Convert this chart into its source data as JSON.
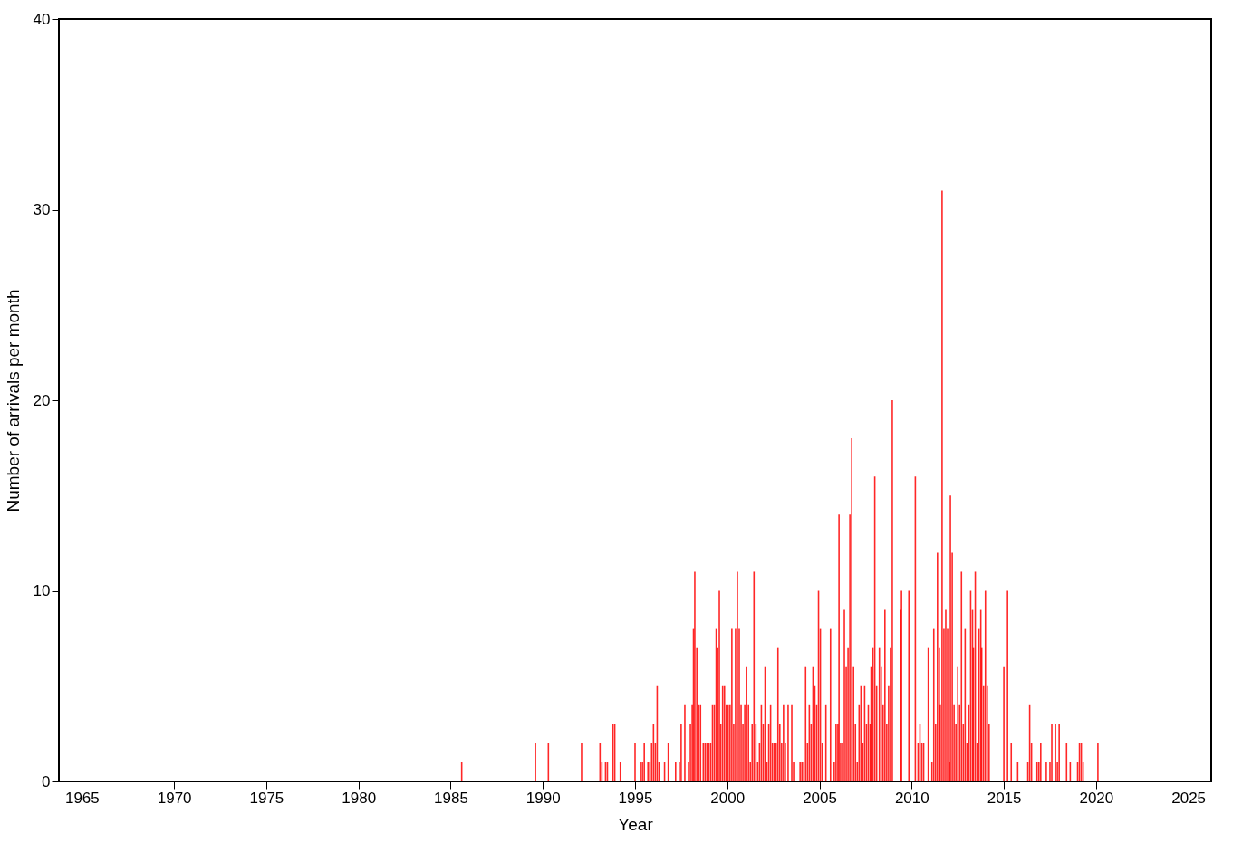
{
  "chart_data": {
    "type": "bar",
    "xlabel": "Year",
    "ylabel": "Number of arrivals per month",
    "x": [
      1985.6,
      1989.6,
      1990.3,
      1992.1,
      1993.1,
      1993.2,
      1993.4,
      1993.5,
      1993.8,
      1993.9,
      1994.2,
      1995.0,
      1995.3,
      1995.4,
      1995.5,
      1995.7,
      1995.8,
      1995.9,
      1996.0,
      1996.1,
      1996.2,
      1996.3,
      1996.6,
      1996.8,
      1997.2,
      1997.4,
      1997.5,
      1997.7,
      1997.9,
      1998.0,
      1998.1,
      1998.17,
      1998.24,
      1998.35,
      1998.45,
      1998.55,
      1998.7,
      1998.8,
      1998.9,
      1999.0,
      1999.1,
      1999.2,
      1999.3,
      1999.4,
      1999.48,
      1999.57,
      1999.65,
      1999.75,
      1999.85,
      1999.95,
      2000.05,
      2000.15,
      2000.25,
      2000.35,
      2000.45,
      2000.55,
      2000.65,
      2000.75,
      2000.85,
      2000.95,
      2001.05,
      2001.15,
      2001.25,
      2001.35,
      2001.45,
      2001.55,
      2001.65,
      2001.75,
      2001.85,
      2001.95,
      2002.05,
      2002.15,
      2002.25,
      2002.35,
      2002.45,
      2002.55,
      2002.65,
      2002.75,
      2002.85,
      2002.95,
      2003.05,
      2003.15,
      2003.3,
      2003.5,
      2003.6,
      2003.95,
      2004.05,
      2004.15,
      2004.25,
      2004.35,
      2004.45,
      2004.55,
      2004.65,
      2004.75,
      2004.85,
      2004.95,
      2005.05,
      2005.15,
      2005.35,
      2005.6,
      2005.8,
      2005.9,
      2006.0,
      2006.06,
      2006.15,
      2006.25,
      2006.35,
      2006.45,
      2006.55,
      2006.65,
      2006.75,
      2006.85,
      2006.95,
      2007.05,
      2007.15,
      2007.25,
      2007.35,
      2007.45,
      2007.55,
      2007.65,
      2007.75,
      2007.8,
      2007.9,
      2008.0,
      2008.1,
      2008.25,
      2008.35,
      2008.45,
      2008.55,
      2008.65,
      2008.75,
      2008.85,
      2008.95,
      2009.4,
      2009.45,
      2009.85,
      2010.2,
      2010.35,
      2010.45,
      2010.55,
      2010.65,
      2010.9,
      2011.1,
      2011.2,
      2011.3,
      2011.4,
      2011.5,
      2011.55,
      2011.65,
      2011.75,
      2011.85,
      2011.95,
      2012.05,
      2012.1,
      2012.2,
      2012.3,
      2012.4,
      2012.5,
      2012.6,
      2012.7,
      2012.8,
      2012.9,
      2013.0,
      2013.1,
      2013.2,
      2013.3,
      2013.35,
      2013.45,
      2013.55,
      2013.65,
      2013.75,
      2013.8,
      2013.9,
      2014.0,
      2014.1,
      2014.2,
      2015.0,
      2015.2,
      2015.4,
      2015.75,
      2016.3,
      2016.4,
      2016.5,
      2016.8,
      2016.9,
      2017.0,
      2017.3,
      2017.5,
      2017.6,
      2017.8,
      2017.9,
      2018.0,
      2018.4,
      2018.6,
      2019.0,
      2019.1,
      2019.2,
      2019.3,
      2020.1
    ],
    "values": [
      1,
      2,
      2,
      2,
      2,
      1,
      1,
      1,
      3,
      3,
      1,
      2,
      1,
      1,
      2,
      1,
      1,
      2,
      3,
      2,
      5,
      1,
      1,
      2,
      1,
      1,
      3,
      4,
      1,
      3,
      4,
      8,
      11,
      7,
      4,
      4,
      2,
      2,
      2,
      2,
      2,
      4,
      4,
      8,
      7,
      10,
      3,
      5,
      5,
      4,
      4,
      4,
      8,
      3,
      8,
      11,
      8,
      4,
      3,
      4,
      6,
      4,
      1,
      3,
      11,
      3,
      1,
      2,
      4,
      3,
      6,
      1,
      3,
      4,
      2,
      2,
      2,
      7,
      3,
      2,
      4,
      2,
      4,
      4,
      1,
      1,
      1,
      1,
      6,
      2,
      4,
      3,
      6,
      5,
      4,
      10,
      8,
      2,
      4,
      8,
      1,
      3,
      3,
      14,
      2,
      2,
      9,
      6,
      7,
      14,
      18,
      6,
      3,
      1,
      4,
      5,
      2,
      5,
      3,
      4,
      3,
      6,
      7,
      16,
      5,
      7,
      6,
      4,
      9,
      3,
      5,
      7,
      20,
      9,
      10,
      10,
      16,
      2,
      3,
      2,
      2,
      7,
      1,
      8,
      3,
      12,
      7,
      4,
      31,
      8,
      9,
      8,
      1,
      15,
      12,
      4,
      3,
      6,
      4,
      11,
      3,
      8,
      2,
      4,
      10,
      9,
      7,
      11,
      2,
      8,
      9,
      7,
      5,
      10,
      5,
      3,
      6,
      10,
      2,
      1,
      1,
      4,
      2,
      1,
      1,
      2,
      1,
      1,
      3,
      3,
      1,
      3,
      2,
      1,
      1,
      2,
      2,
      1,
      2
    ],
    "color": "#ff0000",
    "xlim": [
      1964,
      2026
    ],
    "xticks": [
      1965,
      1970,
      1975,
      1980,
      1985,
      1990,
      1995,
      2000,
      2005,
      2010,
      2015,
      2020,
      2025
    ],
    "ylim": [
      0,
      40
    ],
    "yticks": [
      0,
      10,
      20,
      30,
      40
    ],
    "grid": false
  }
}
